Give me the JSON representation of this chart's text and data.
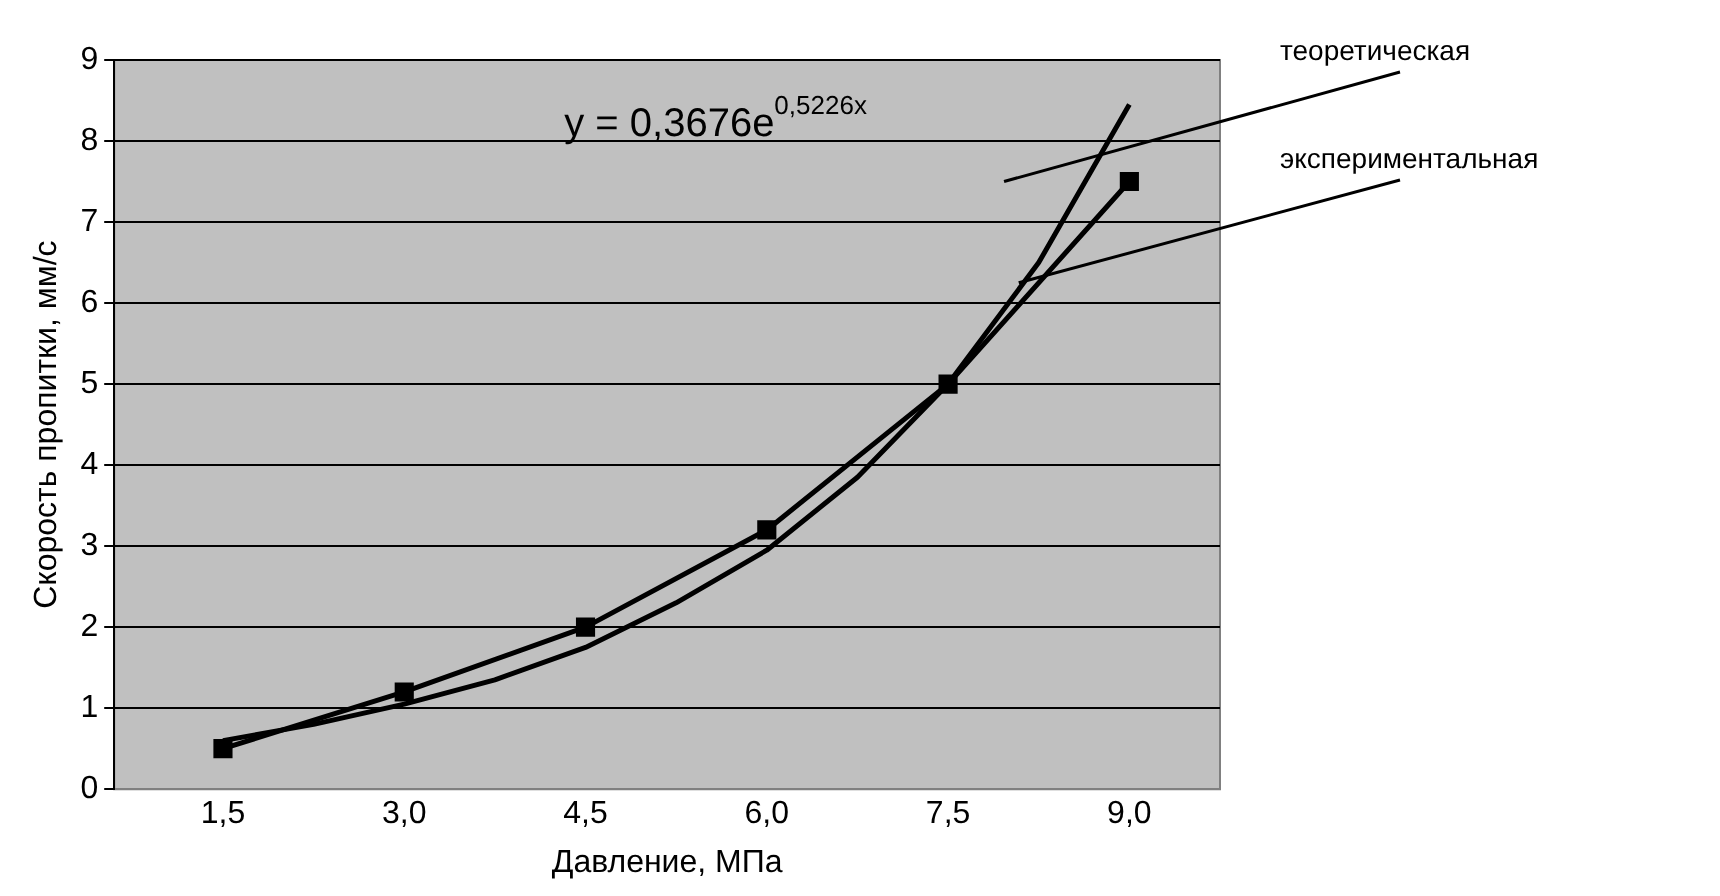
{
  "chart_data": {
    "type": "line",
    "xlabel": "Давление, МПа",
    "ylabel": "Скорость пропитки, мм/с",
    "xlim": [
      0.6,
      9.75
    ],
    "xticks": [
      {
        "value": 1.5,
        "label": "1,5"
      },
      {
        "value": 3,
        "label": "3,0"
      },
      {
        "value": 4.5,
        "label": "4,5"
      },
      {
        "value": 6,
        "label": "6,0"
      },
      {
        "value": 7.5,
        "label": "7,5"
      },
      {
        "value": 9,
        "label": "9,0"
      }
    ],
    "ylim": [
      0,
      9
    ],
    "yticks": [
      0,
      1,
      2,
      3,
      4,
      5,
      6,
      7,
      8,
      9
    ],
    "grid": "y",
    "legend": false,
    "series": [
      {
        "name": "теоретическая",
        "color": "#000000",
        "marker": "none",
        "x": [
          1.5,
          2.25,
          3,
          3.75,
          4.5,
          5.25,
          6,
          6.75,
          7.5,
          8.25,
          9
        ],
        "values": [
          0.6,
          0.8,
          1.05,
          1.35,
          1.75,
          2.3,
          2.95,
          3.85,
          5.0,
          6.5,
          8.45
        ]
      },
      {
        "name": "экспериментальная",
        "color": "#000000",
        "marker": "square",
        "x": [
          1.5,
          3,
          4.5,
          6,
          7.5,
          9
        ],
        "values": [
          0.5,
          1.2,
          2.0,
          3.2,
          5.0,
          7.5
        ]
      }
    ],
    "annotations": [
      "y = 0,3676e$^{0,5226x}$"
    ]
  }
}
